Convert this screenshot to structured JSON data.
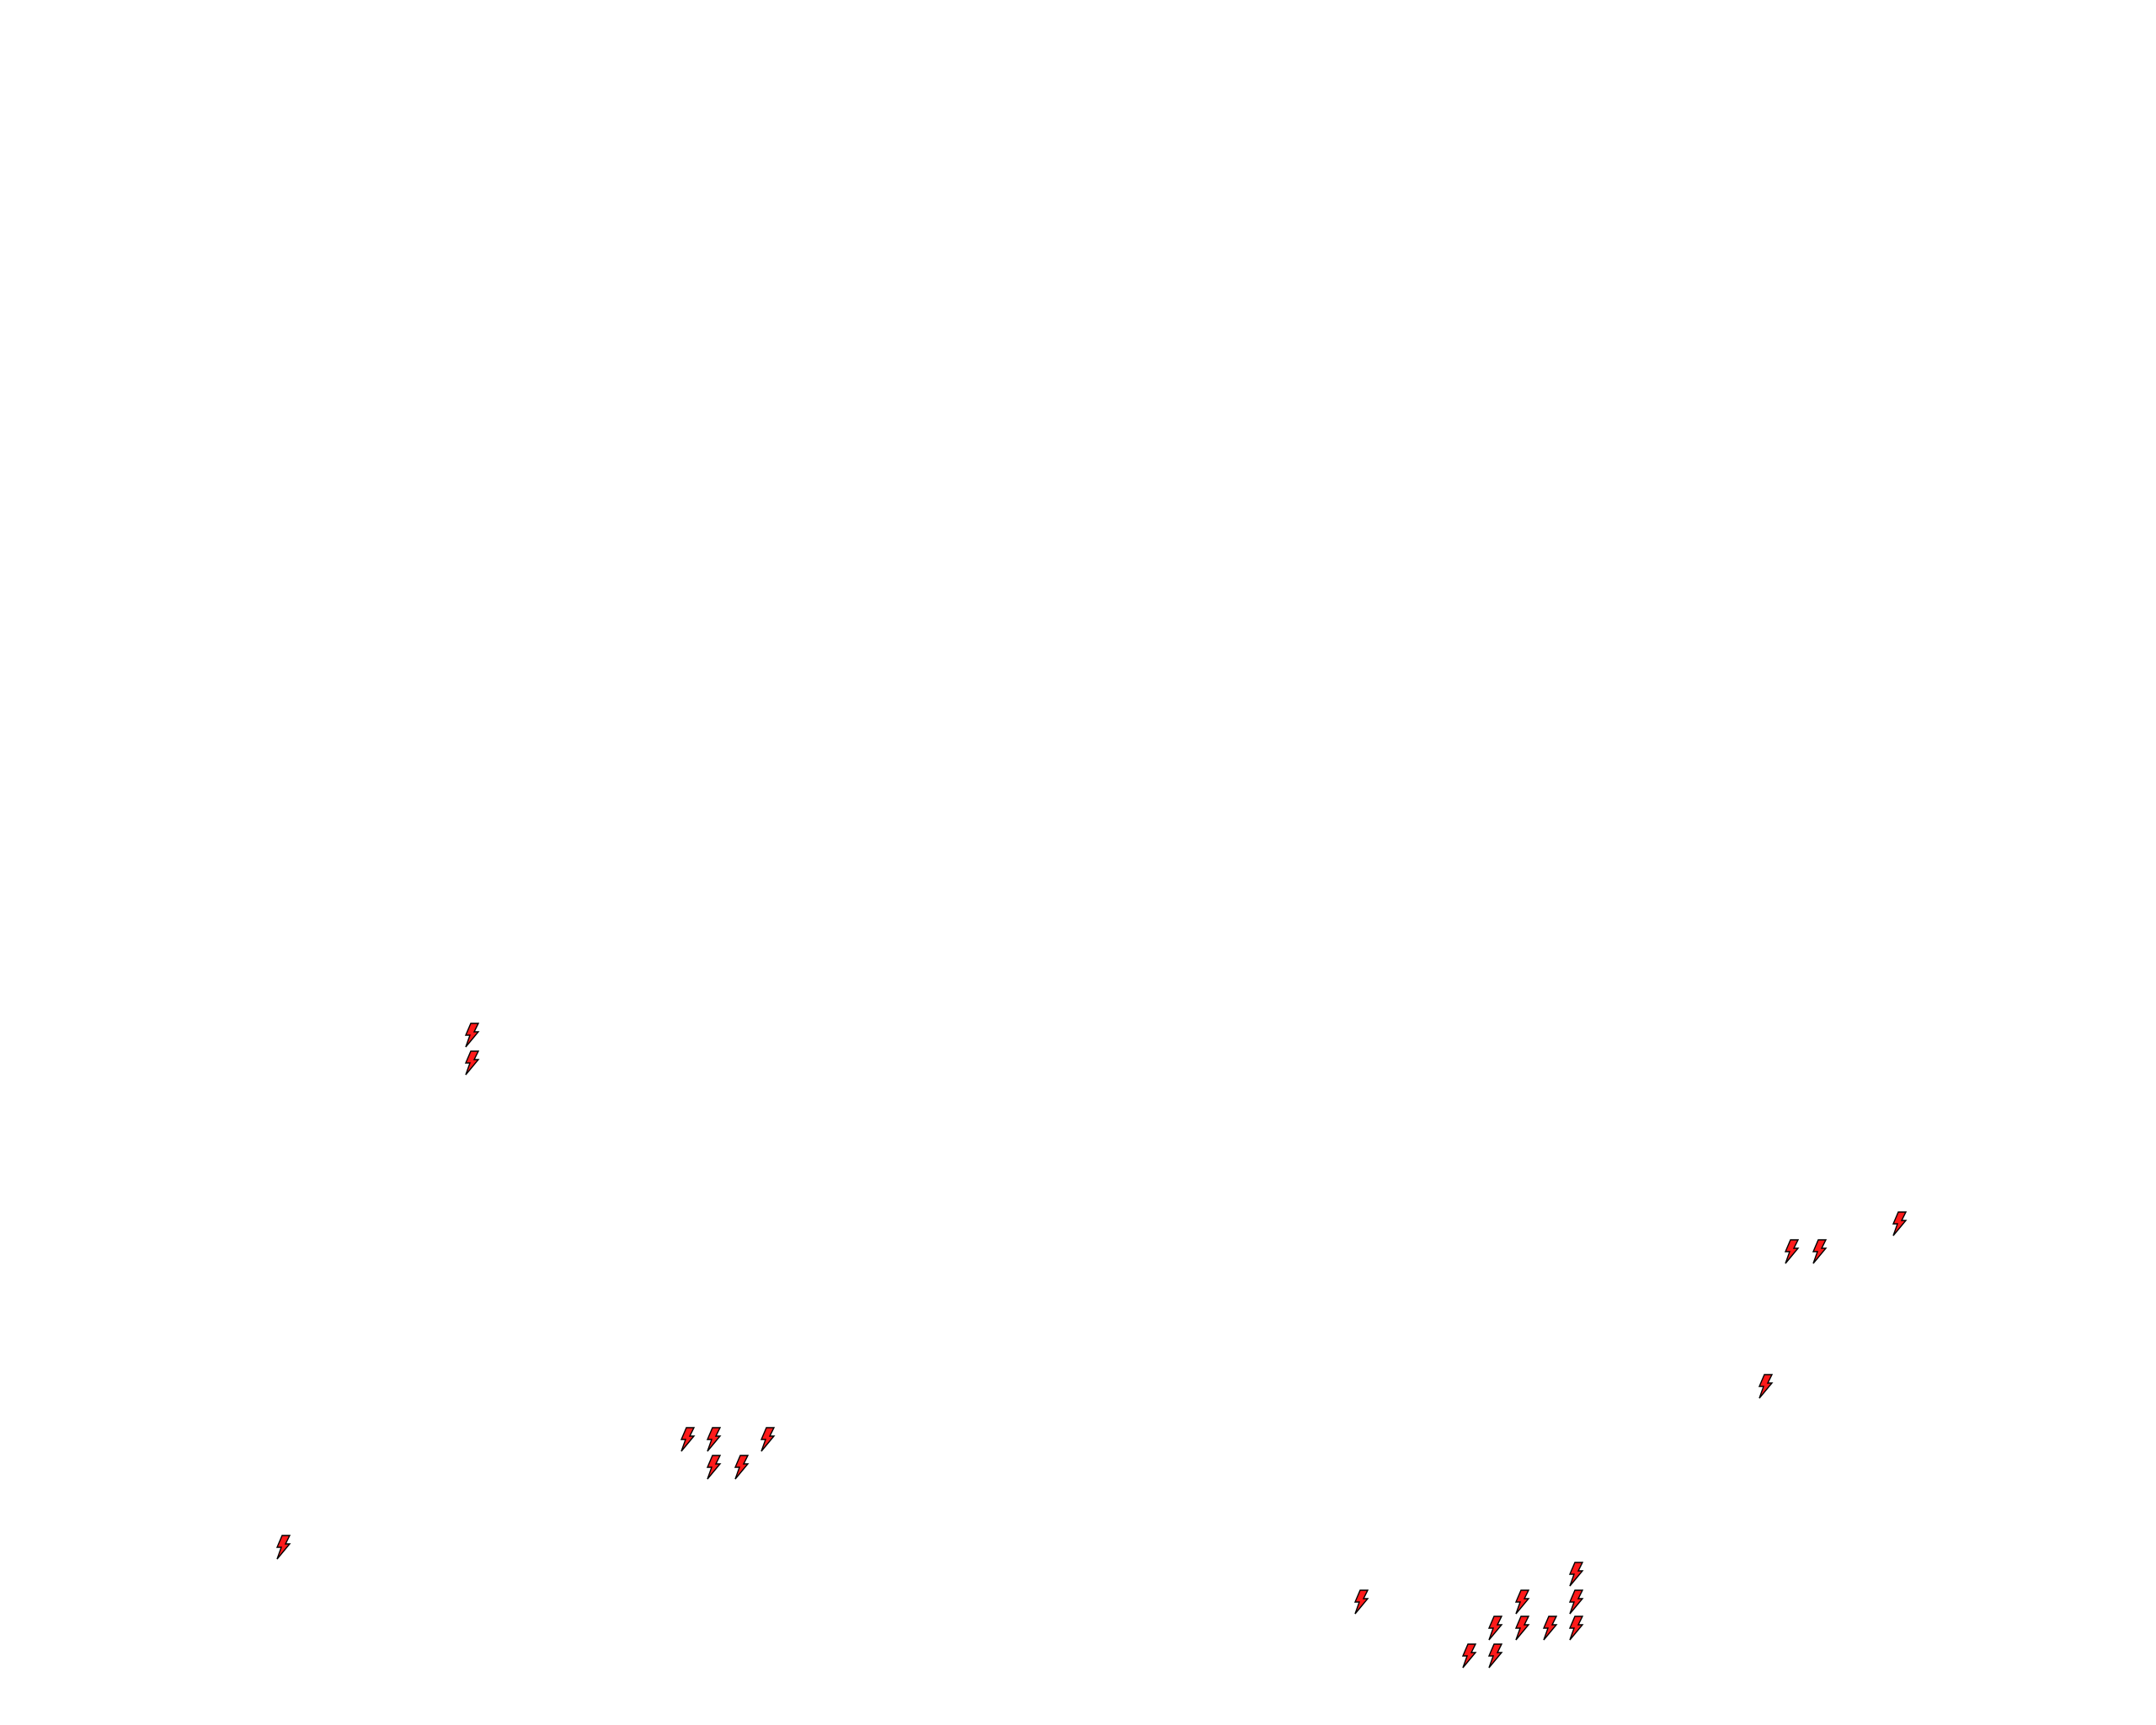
{
  "map": {
    "background_color": "#ffffff",
    "marker": {
      "icon": "lightning-bolt-icon",
      "fill_color": "#ff1a1a",
      "stroke_color": "#000000"
    }
  }
}
